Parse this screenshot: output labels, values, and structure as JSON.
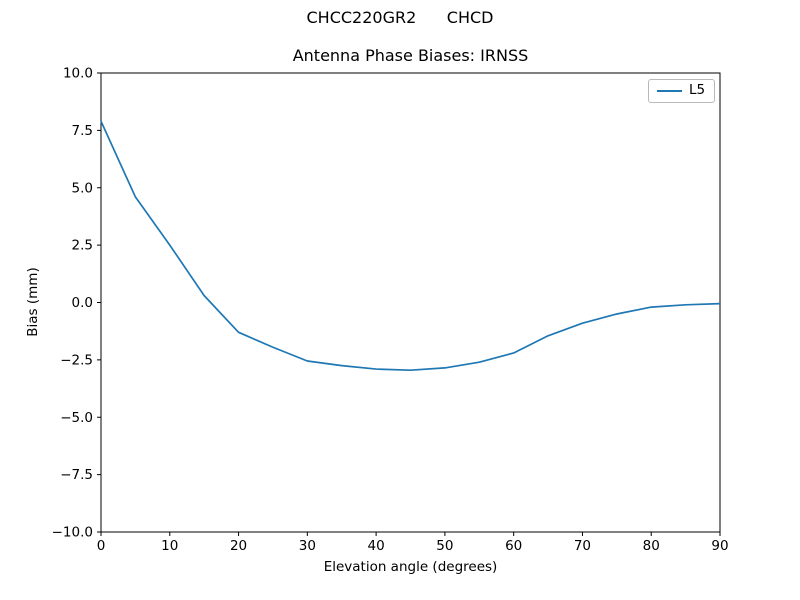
{
  "suptitle": "CHCC220GR2      CHCD",
  "chart_data": {
    "type": "line",
    "title": "Antenna Phase Biases: IRNSS",
    "xlabel": "Elevation angle (degrees)",
    "ylabel": "Bias (mm)",
    "xlim": [
      0,
      90
    ],
    "ylim": [
      -10,
      10
    ],
    "x_ticks": [
      0,
      10,
      20,
      30,
      40,
      50,
      60,
      70,
      80,
      90
    ],
    "y_ticks": [
      10.0,
      7.5,
      5.0,
      2.5,
      0.0,
      -2.5,
      -5.0,
      -7.5,
      -10.0
    ],
    "grid": false,
    "legend_position": "upper right",
    "colors": {
      "axis": "#000000",
      "series": "#1f77b4"
    },
    "series": [
      {
        "name": "L5",
        "color": "#1f77b4",
        "x": [
          0,
          5,
          10,
          15,
          20,
          25,
          30,
          35,
          40,
          45,
          50,
          55,
          60,
          65,
          70,
          75,
          80,
          85,
          90
        ],
        "values": [
          7.9,
          4.6,
          2.5,
          0.3,
          -1.3,
          -1.95,
          -2.55,
          -2.75,
          -2.9,
          -2.95,
          -2.85,
          -2.6,
          -2.2,
          -1.45,
          -0.9,
          -0.5,
          -0.2,
          -0.1,
          -0.05
        ]
      }
    ]
  }
}
